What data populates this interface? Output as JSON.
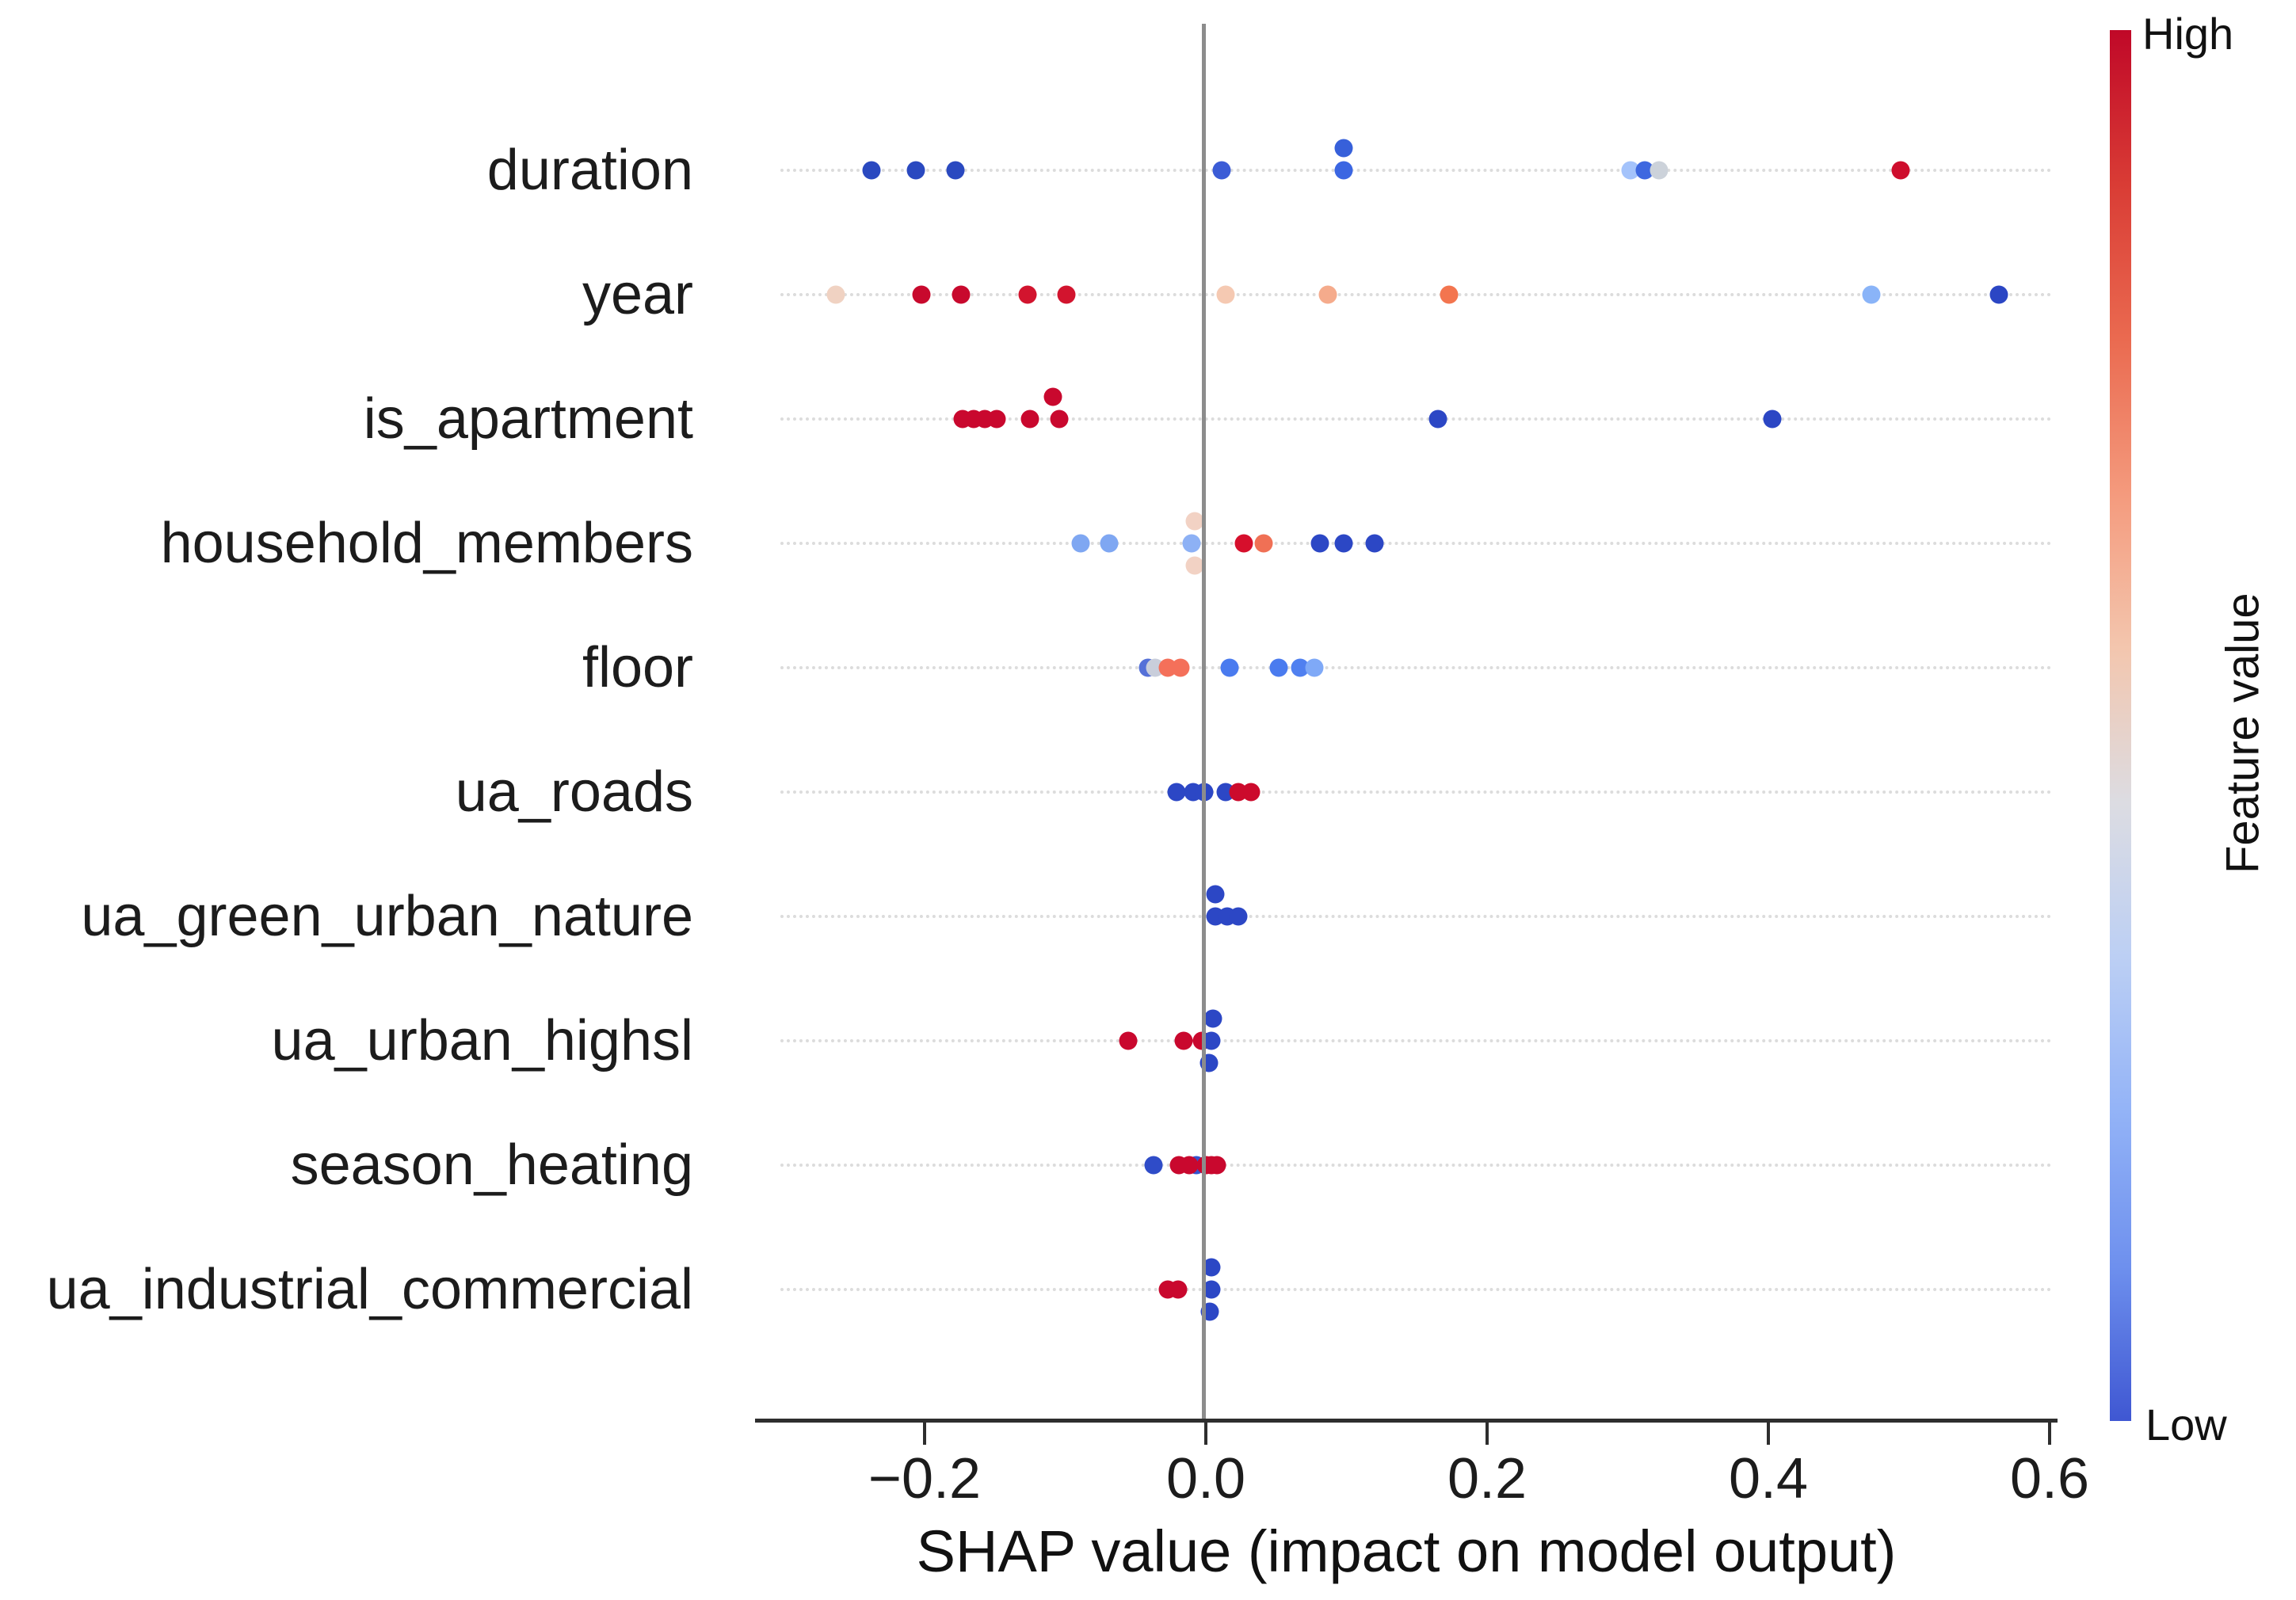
{
  "chart_data": {
    "type": "scatter",
    "subtype": "shap-beeswarm-summary",
    "title": "",
    "xlabel": "SHAP value (impact on model output)",
    "ylabel": "",
    "xlim": [
      -0.3,
      0.62
    ],
    "grid": "dotted-row-lines",
    "zero_reference_line": 0.0,
    "x_ticks": [
      {
        "value": -0.2,
        "label": "−0.2"
      },
      {
        "value": 0.0,
        "label": "0.0"
      },
      {
        "value": 0.2,
        "label": "0.2"
      },
      {
        "value": 0.4,
        "label": "0.4"
      },
      {
        "value": 0.6,
        "label": "0.6"
      }
    ],
    "colorbar": {
      "label": "Feature value",
      "high_label": "High",
      "low_label": "Low",
      "high_color": "#c00828",
      "low_color": "#3f57d2",
      "gradient_top_to_bottom": [
        "#c00828",
        "#d93c35",
        "#ea6a50",
        "#f49a7d",
        "#f3c6ae",
        "#dcdce2",
        "#bccff4",
        "#93b3f7",
        "#6e90ee",
        "#3f57d2"
      ]
    },
    "features": [
      {
        "name": "duration",
        "points": [
          {
            "x": -0.238,
            "color": "#2a49c0",
            "lift": 0
          },
          {
            "x": -0.206,
            "color": "#2a49c0",
            "lift": 0
          },
          {
            "x": -0.178,
            "color": "#2a49c0",
            "lift": 0
          },
          {
            "x": 0.011,
            "color": "#3b5cd6",
            "lift": 0
          },
          {
            "x": 0.098,
            "color": "#3760da",
            "lift": -1
          },
          {
            "x": 0.098,
            "color": "#3b66e2",
            "lift": 0
          },
          {
            "x": 0.302,
            "color": "#a4c3fb",
            "lift": 0
          },
          {
            "x": 0.312,
            "color": "#3e68e0",
            "lift": 0
          },
          {
            "x": 0.322,
            "color": "#ccd2da",
            "lift": 0
          },
          {
            "x": 0.494,
            "color": "#ce0e2d",
            "lift": 0
          }
        ]
      },
      {
        "name": "year",
        "points": [
          {
            "x": -0.263,
            "color": "#f0d2c2",
            "lift": 0
          },
          {
            "x": -0.202,
            "color": "#c8092d",
            "lift": 0
          },
          {
            "x": -0.174,
            "color": "#c8092d",
            "lift": 0
          },
          {
            "x": -0.127,
            "color": "#d2142e",
            "lift": 0
          },
          {
            "x": -0.099,
            "color": "#d2142e",
            "lift": 0
          },
          {
            "x": 0.014,
            "color": "#f5c9b2",
            "lift": 0
          },
          {
            "x": 0.087,
            "color": "#f5ab8c",
            "lift": 0
          },
          {
            "x": 0.173,
            "color": "#f3754f",
            "lift": 0
          },
          {
            "x": 0.473,
            "color": "#8ab4f8",
            "lift": 0
          },
          {
            "x": 0.564,
            "color": "#2b46c4",
            "lift": 0
          }
        ]
      },
      {
        "name": "is_apartment",
        "points": [
          {
            "x": -0.173,
            "color": "#c9082e",
            "lift": 0
          },
          {
            "x": -0.165,
            "color": "#c9082e",
            "lift": 0
          },
          {
            "x": -0.157,
            "color": "#c9082e",
            "lift": 0
          },
          {
            "x": -0.149,
            "color": "#c9082e",
            "lift": 0
          },
          {
            "x": -0.125,
            "color": "#c9082e",
            "lift": 0
          },
          {
            "x": -0.109,
            "color": "#c9082e",
            "lift": -1
          },
          {
            "x": -0.104,
            "color": "#c9082e",
            "lift": 0
          },
          {
            "x": 0.165,
            "color": "#2c47c5",
            "lift": 0
          },
          {
            "x": 0.403,
            "color": "#2b46c4",
            "lift": 0
          }
        ]
      },
      {
        "name": "household_members",
        "points": [
          {
            "x": -0.089,
            "color": "#7fa7f2",
            "lift": 0
          },
          {
            "x": -0.069,
            "color": "#7fa7f2",
            "lift": 0
          },
          {
            "x": -0.01,
            "color": "#8db1f5",
            "lift": 0
          },
          {
            "x": -0.008,
            "color": "#f2d2c4",
            "lift": -1
          },
          {
            "x": -0.008,
            "color": "#f2d2c4",
            "lift": 1
          },
          {
            "x": 0.027,
            "color": "#d60f2c",
            "lift": 0
          },
          {
            "x": 0.041,
            "color": "#f07055",
            "lift": 0
          },
          {
            "x": 0.081,
            "color": "#2c47c5",
            "lift": 0
          },
          {
            "x": 0.098,
            "color": "#2c47c5",
            "lift": 0
          },
          {
            "x": 0.12,
            "color": "#2c47c5",
            "lift": 0
          }
        ]
      },
      {
        "name": "floor",
        "points": [
          {
            "x": -0.041,
            "color": "#5571d8",
            "lift": 0
          },
          {
            "x": -0.036,
            "color": "#c9cedb",
            "lift": 0
          },
          {
            "x": -0.027,
            "color": "#f4705a",
            "lift": 0
          },
          {
            "x": -0.018,
            "color": "#f4705a",
            "lift": 0
          },
          {
            "x": 0.017,
            "color": "#4a7bef",
            "lift": 0
          },
          {
            "x": 0.052,
            "color": "#4a7bef",
            "lift": 0
          },
          {
            "x": 0.067,
            "color": "#5080f0",
            "lift": 0
          },
          {
            "x": 0.077,
            "color": "#7fa9f7",
            "lift": 0
          }
        ]
      },
      {
        "name": "ua_roads",
        "points": [
          {
            "x": -0.021,
            "color": "#2c47c5",
            "lift": 0
          },
          {
            "x": -0.009,
            "color": "#2c47c5",
            "lift": 0
          },
          {
            "x": -0.001,
            "color": "#2c47c5",
            "lift": 0
          },
          {
            "x": 0.014,
            "color": "#2c47c5",
            "lift": 0
          },
          {
            "x": 0.023,
            "color": "#cc0a2c",
            "lift": 0
          },
          {
            "x": 0.032,
            "color": "#cc0a2c",
            "lift": 0
          }
        ]
      },
      {
        "name": "ua_green_urban_nature",
        "points": [
          {
            "x": 0.007,
            "color": "#2c47c5",
            "lift": -1
          },
          {
            "x": 0.007,
            "color": "#2c47c5",
            "lift": 0
          },
          {
            "x": 0.015,
            "color": "#2c47c5",
            "lift": 0
          },
          {
            "x": 0.023,
            "color": "#2c47c5",
            "lift": 0
          }
        ]
      },
      {
        "name": "ua_urban_highsl",
        "points": [
          {
            "x": -0.055,
            "color": "#c9082e",
            "lift": 0
          },
          {
            "x": -0.016,
            "color": "#c9082e",
            "lift": 0
          },
          {
            "x": -0.003,
            "color": "#c9082e",
            "lift": 0
          },
          {
            "x": 0.005,
            "color": "#2c47c5",
            "lift": -1
          },
          {
            "x": 0.004,
            "color": "#2c47c5",
            "lift": 0
          },
          {
            "x": 0.002,
            "color": "#2c47c5",
            "lift": 1
          }
        ]
      },
      {
        "name": "season_heating",
        "points": [
          {
            "x": -0.037,
            "color": "#2f4cc8",
            "lift": 0
          },
          {
            "x": -0.007,
            "color": "#3454cf",
            "lift": 0
          },
          {
            "x": -0.019,
            "color": "#c9082e",
            "lift": 0
          },
          {
            "x": -0.012,
            "color": "#c9082e",
            "lift": 0
          },
          {
            "x": 0.0,
            "color": "#c9082e",
            "lift": 0
          },
          {
            "x": 0.004,
            "color": "#c9082e",
            "lift": 0
          },
          {
            "x": 0.008,
            "color": "#c9082e",
            "lift": 0
          }
        ]
      },
      {
        "name": "ua_industrial_commercial",
        "points": [
          {
            "x": -0.027,
            "color": "#c9082e",
            "lift": 0
          },
          {
            "x": -0.02,
            "color": "#c9082e",
            "lift": 0
          },
          {
            "x": 0.004,
            "color": "#2c47c5",
            "lift": -1
          },
          {
            "x": 0.004,
            "color": "#2c47c5",
            "lift": 0
          },
          {
            "x": 0.003,
            "color": "#2c47c5",
            "lift": 1
          }
        ]
      }
    ]
  }
}
